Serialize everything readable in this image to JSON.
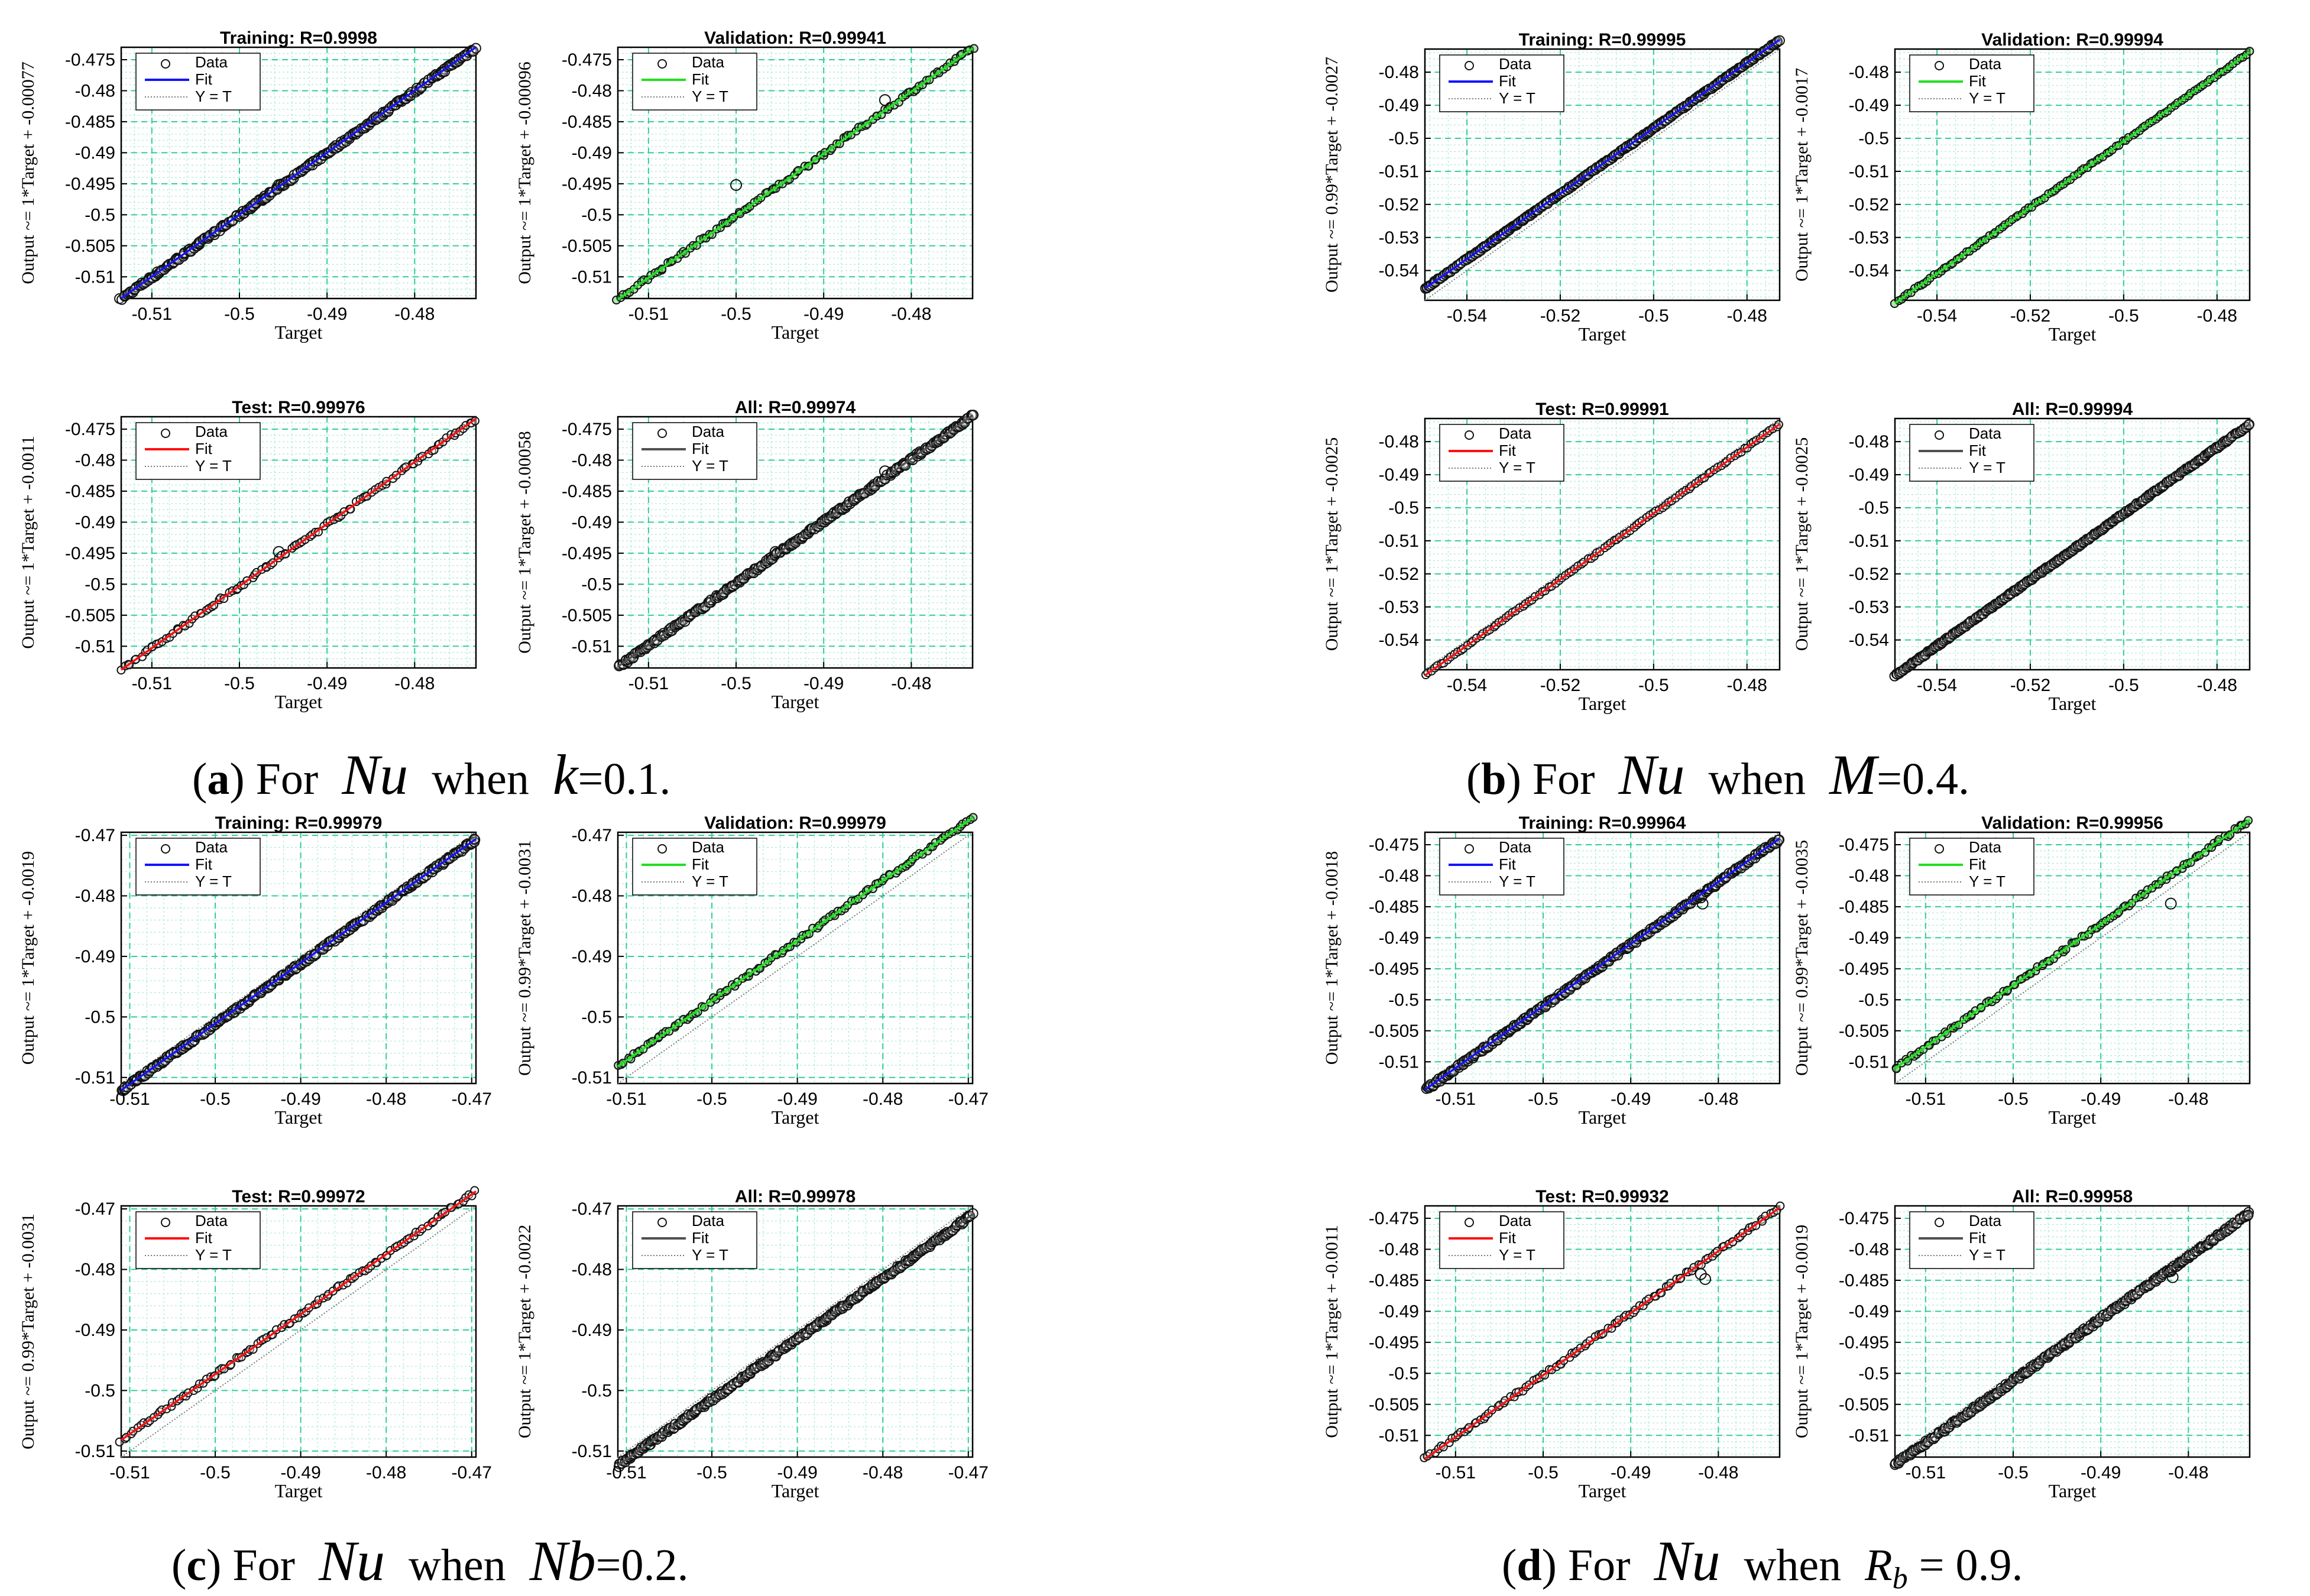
{
  "colors": {
    "fit_training": "#1414ff",
    "fit_validation": "#22e022",
    "fit_test": "#ff1010",
    "fit_all": "#505050",
    "grid": "#33cc99",
    "minor_grid": "#a8ecd4"
  },
  "common": {
    "xlabel": "Target",
    "legend": [
      "Data",
      "Fit",
      "Y = T"
    ]
  },
  "captions": [
    {
      "letter": "a",
      "open": "(",
      "close": ")",
      "for": "For",
      "var": "Nu",
      "when": "when",
      "param": "k",
      "eq": "=",
      "value": "0.1",
      "end": "."
    },
    {
      "letter": "b",
      "open": "(",
      "close": ")",
      "for": "For",
      "var": "Nu",
      "when": "when",
      "param": "M",
      "eq": "=",
      "value": "0.4",
      "end": "."
    },
    {
      "letter": "c",
      "open": "(",
      "close": ")",
      "for": "For",
      "var": "Nu",
      "when": "when",
      "param": "Nb",
      "eq": "=",
      "value": "0.2",
      "end": "."
    },
    {
      "letter": "d",
      "open": "(",
      "close": ")",
      "for": "For",
      "var": "Nu",
      "when": "when",
      "param": "R",
      "param_sub": "b",
      "eq": "=",
      "value": "0.9",
      "end": "."
    }
  ],
  "chart_data": [
    {
      "type": "scatter",
      "group": "a",
      "kind": "training",
      "title": "Training: R=0.9998",
      "ylabel": "Output ~= 1*Target + -0.00077",
      "xlim": [
        -0.5135,
        -0.473
      ],
      "ylim": [
        -0.5135,
        -0.473
      ],
      "xticks": [
        -0.51,
        -0.5,
        -0.49,
        -0.48
      ],
      "xtick_labels": [
        "-0.51",
        "-0.5",
        "-0.49",
        "-0.48"
      ],
      "yticks": [
        -0.51,
        -0.505,
        -0.5,
        -0.495,
        -0.49,
        -0.485,
        -0.48,
        -0.475
      ],
      "ytick_labels": [
        "-0.51",
        "-0.505",
        "-0.5",
        "-0.495",
        "-0.49",
        "-0.485",
        "-0.48",
        "-0.475"
      ],
      "fit": {
        "slope": 1,
        "intercept": -0.00077
      },
      "density": "dense",
      "outliers": [
        [
          -0.4955,
          -0.4952
        ]
      ]
    },
    {
      "type": "scatter",
      "group": "a",
      "kind": "validation",
      "title": "Validation: R=0.99941",
      "ylabel": "Output ~= 1*Target + -0.00096",
      "xlim": [
        -0.5135,
        -0.473
      ],
      "ylim": [
        -0.5135,
        -0.473
      ],
      "xticks": [
        -0.51,
        -0.5,
        -0.49,
        -0.48
      ],
      "xtick_labels": [
        "-0.51",
        "-0.5",
        "-0.49",
        "-0.48"
      ],
      "yticks": [
        -0.51,
        -0.505,
        -0.5,
        -0.495,
        -0.49,
        -0.485,
        -0.48,
        -0.475
      ],
      "ytick_labels": [
        "-0.51",
        "-0.505",
        "-0.5",
        "-0.495",
        "-0.49",
        "-0.485",
        "-0.48",
        "-0.475"
      ],
      "fit": {
        "slope": 1,
        "intercept": -0.00096
      },
      "density": "medium",
      "outliers": [
        [
          -0.5,
          -0.4952
        ],
        [
          -0.483,
          -0.4815
        ]
      ]
    },
    {
      "type": "scatter",
      "group": "a",
      "kind": "test",
      "title": "Test: R=0.99976",
      "ylabel": "Output ~= 1*Target + -0.0011",
      "xlim": [
        -0.5135,
        -0.473
      ],
      "ylim": [
        -0.5135,
        -0.473
      ],
      "xticks": [
        -0.51,
        -0.5,
        -0.49,
        -0.48
      ],
      "xtick_labels": [
        "-0.51",
        "-0.5",
        "-0.49",
        "-0.48"
      ],
      "yticks": [
        -0.51,
        -0.505,
        -0.5,
        -0.495,
        -0.49,
        -0.485,
        -0.48,
        -0.475
      ],
      "ytick_labels": [
        "-0.51",
        "-0.505",
        "-0.5",
        "-0.495",
        "-0.49",
        "-0.485",
        "-0.48",
        "-0.475"
      ],
      "fit": {
        "slope": 1,
        "intercept": -0.0011
      },
      "density": "medium",
      "outliers": [
        [
          -0.4955,
          -0.4948
        ]
      ]
    },
    {
      "type": "scatter",
      "group": "a",
      "kind": "all",
      "title": "All: R=0.99974",
      "ylabel": "Output ~= 1*Target + -0.00058",
      "xlim": [
        -0.5135,
        -0.473
      ],
      "ylim": [
        -0.5135,
        -0.473
      ],
      "xticks": [
        -0.51,
        -0.5,
        -0.49,
        -0.48
      ],
      "xtick_labels": [
        "-0.51",
        "-0.5",
        "-0.49",
        "-0.48"
      ],
      "yticks": [
        -0.51,
        -0.505,
        -0.5,
        -0.495,
        -0.49,
        -0.485,
        -0.48,
        -0.475
      ],
      "ytick_labels": [
        "-0.51",
        "-0.505",
        "-0.5",
        "-0.495",
        "-0.49",
        "-0.485",
        "-0.48",
        "-0.475"
      ],
      "fit": {
        "slope": 1,
        "intercept": -0.00058
      },
      "density": "dense",
      "outliers": [
        [
          -0.4955,
          -0.4948
        ],
        [
          -0.483,
          -0.4818
        ]
      ]
    },
    {
      "type": "scatter",
      "group": "b",
      "kind": "training",
      "title": "Training: R=0.99995",
      "ylabel": "Output ~= 0.99*Target + -0.0027",
      "xlim": [
        -0.549,
        -0.473
      ],
      "ylim": [
        -0.549,
        -0.473
      ],
      "xticks": [
        -0.54,
        -0.52,
        -0.5,
        -0.48
      ],
      "xtick_labels": [
        "-0.54",
        "-0.52",
        "-0.5",
        "-0.48"
      ],
      "yticks": [
        -0.54,
        -0.53,
        -0.52,
        -0.51,
        -0.5,
        -0.49,
        -0.48
      ],
      "ytick_labels": [
        "-0.54",
        "-0.53",
        "-0.52",
        "-0.51",
        "-0.5",
        "-0.49",
        "-0.48"
      ],
      "fit": {
        "slope": 0.99,
        "intercept": -0.0027
      },
      "density": "dense",
      "outliers": []
    },
    {
      "type": "scatter",
      "group": "b",
      "kind": "validation",
      "title": "Validation: R=0.99994",
      "ylabel": "Output ~= 1*Target + -0.0017",
      "xlim": [
        -0.549,
        -0.473
      ],
      "ylim": [
        -0.549,
        -0.473
      ],
      "xticks": [
        -0.54,
        -0.52,
        -0.5,
        -0.48
      ],
      "xtick_labels": [
        "-0.54",
        "-0.52",
        "-0.5",
        "-0.48"
      ],
      "yticks": [
        -0.54,
        -0.53,
        -0.52,
        -0.51,
        -0.5,
        -0.49,
        -0.48
      ],
      "ytick_labels": [
        "-0.54",
        "-0.53",
        "-0.52",
        "-0.51",
        "-0.5",
        "-0.49",
        "-0.48"
      ],
      "fit": {
        "slope": 1,
        "intercept": -0.0017
      },
      "density": "medium",
      "outliers": []
    },
    {
      "type": "scatter",
      "group": "b",
      "kind": "test",
      "title": "Test: R=0.99991",
      "ylabel": "Output ~= 1*Target + -0.0025",
      "xlim": [
        -0.549,
        -0.473
      ],
      "ylim": [
        -0.549,
        -0.473
      ],
      "xticks": [
        -0.54,
        -0.52,
        -0.5,
        -0.48
      ],
      "xtick_labels": [
        "-0.54",
        "-0.52",
        "-0.5",
        "-0.48"
      ],
      "yticks": [
        -0.54,
        -0.53,
        -0.52,
        -0.51,
        -0.5,
        -0.49,
        -0.48
      ],
      "ytick_labels": [
        "-0.54",
        "-0.53",
        "-0.52",
        "-0.51",
        "-0.5",
        "-0.49",
        "-0.48"
      ],
      "fit": {
        "slope": 1,
        "intercept": -0.0025
      },
      "density": "medium",
      "outliers": []
    },
    {
      "type": "scatter",
      "group": "b",
      "kind": "all",
      "title": "All: R=0.99994",
      "ylabel": "Output ~= 1*Target + -0.0025",
      "xlim": [
        -0.549,
        -0.473
      ],
      "ylim": [
        -0.549,
        -0.473
      ],
      "xticks": [
        -0.54,
        -0.52,
        -0.5,
        -0.48
      ],
      "xtick_labels": [
        "-0.54",
        "-0.52",
        "-0.5",
        "-0.48"
      ],
      "yticks": [
        -0.54,
        -0.53,
        -0.52,
        -0.51,
        -0.5,
        -0.49,
        -0.48
      ],
      "ytick_labels": [
        "-0.54",
        "-0.53",
        "-0.52",
        "-0.51",
        "-0.5",
        "-0.49",
        "-0.48"
      ],
      "fit": {
        "slope": 1,
        "intercept": -0.0025
      },
      "density": "dense",
      "outliers": []
    },
    {
      "type": "scatter",
      "group": "c",
      "kind": "training",
      "title": "Training: R=0.99979",
      "ylabel": "Output ~= 1*Target + -0.0019",
      "xlim": [
        -0.511,
        -0.4695
      ],
      "ylim": [
        -0.511,
        -0.4695
      ],
      "xticks": [
        -0.51,
        -0.5,
        -0.49,
        -0.48,
        -0.47
      ],
      "xtick_labels": [
        "-0.51",
        "-0.5",
        "-0.49",
        "-0.48",
        "-0.47"
      ],
      "yticks": [
        -0.51,
        -0.5,
        -0.49,
        -0.48,
        -0.47
      ],
      "ytick_labels": [
        "-0.51",
        "-0.5",
        "-0.49",
        "-0.48",
        "-0.47"
      ],
      "fit": {
        "slope": 1,
        "intercept": -0.0019
      },
      "density": "dense",
      "outliers": []
    },
    {
      "type": "scatter",
      "group": "c",
      "kind": "validation",
      "title": "Validation: R=0.99979",
      "ylabel": "Output ~= 0.99*Target + -0.0031",
      "xlim": [
        -0.511,
        -0.4695
      ],
      "ylim": [
        -0.511,
        -0.4695
      ],
      "xticks": [
        -0.51,
        -0.5,
        -0.49,
        -0.48,
        -0.47
      ],
      "xtick_labels": [
        "-0.51",
        "-0.5",
        "-0.49",
        "-0.48",
        "-0.47"
      ],
      "yticks": [
        -0.51,
        -0.5,
        -0.49,
        -0.48,
        -0.47
      ],
      "ytick_labels": [
        "-0.51",
        "-0.5",
        "-0.49",
        "-0.48",
        "-0.47"
      ],
      "fit": {
        "slope": 0.99,
        "intercept": -0.0031
      },
      "density": "medium",
      "outliers": []
    },
    {
      "type": "scatter",
      "group": "c",
      "kind": "test",
      "title": "Test: R=0.99972",
      "ylabel": "Output ~= 0.99*Target + -0.0031",
      "xlim": [
        -0.511,
        -0.4695
      ],
      "ylim": [
        -0.511,
        -0.4695
      ],
      "xticks": [
        -0.51,
        -0.5,
        -0.49,
        -0.48,
        -0.47
      ],
      "xtick_labels": [
        "-0.51",
        "-0.5",
        "-0.49",
        "-0.48",
        "-0.47"
      ],
      "yticks": [
        -0.51,
        -0.5,
        -0.49,
        -0.48,
        -0.47
      ],
      "ytick_labels": [
        "-0.51",
        "-0.5",
        "-0.49",
        "-0.48",
        "-0.47"
      ],
      "fit": {
        "slope": 0.99,
        "intercept": -0.0031
      },
      "density": "medium",
      "outliers": []
    },
    {
      "type": "scatter",
      "group": "c",
      "kind": "all",
      "title": "All: R=0.99978",
      "ylabel": "Output ~= 1*Target + -0.0022",
      "xlim": [
        -0.511,
        -0.4695
      ],
      "ylim": [
        -0.511,
        -0.4695
      ],
      "xticks": [
        -0.51,
        -0.5,
        -0.49,
        -0.48,
        -0.47
      ],
      "xtick_labels": [
        "-0.51",
        "-0.5",
        "-0.49",
        "-0.48",
        "-0.47"
      ],
      "yticks": [
        -0.51,
        -0.5,
        -0.49,
        -0.48,
        -0.47
      ],
      "ytick_labels": [
        "-0.51",
        "-0.5",
        "-0.49",
        "-0.48",
        "-0.47"
      ],
      "fit": {
        "slope": 1,
        "intercept": -0.0022
      },
      "density": "dense",
      "outliers": []
    },
    {
      "type": "scatter",
      "group": "d",
      "kind": "training",
      "title": "Training: R=0.99964",
      "ylabel": "Output ~= 1*Target + -0.0018",
      "xlim": [
        -0.5135,
        -0.473
      ],
      "ylim": [
        -0.5135,
        -0.473
      ],
      "xticks": [
        -0.51,
        -0.5,
        -0.49,
        -0.48
      ],
      "xtick_labels": [
        "-0.51",
        "-0.5",
        "-0.49",
        "-0.48"
      ],
      "yticks": [
        -0.51,
        -0.505,
        -0.5,
        -0.495,
        -0.49,
        -0.485,
        -0.48,
        -0.475
      ],
      "ytick_labels": [
        "-0.51",
        "-0.505",
        "-0.5",
        "-0.495",
        "-0.49",
        "-0.485",
        "-0.48",
        "-0.475"
      ],
      "fit": {
        "slope": 1,
        "intercept": -0.0018
      },
      "density": "dense",
      "outliers": [
        [
          -0.482,
          -0.4835
        ],
        [
          -0.4818,
          -0.4845
        ]
      ]
    },
    {
      "type": "scatter",
      "group": "d",
      "kind": "validation",
      "title": "Validation: R=0.99956",
      "ylabel": "Output ~= 0.99*Target + -0.0035",
      "xlim": [
        -0.5135,
        -0.473
      ],
      "ylim": [
        -0.5135,
        -0.473
      ],
      "xticks": [
        -0.51,
        -0.5,
        -0.49,
        -0.48
      ],
      "xtick_labels": [
        "-0.51",
        "-0.5",
        "-0.49",
        "-0.48"
      ],
      "yticks": [
        -0.51,
        -0.505,
        -0.5,
        -0.495,
        -0.49,
        -0.485,
        -0.48,
        -0.475
      ],
      "ytick_labels": [
        "-0.51",
        "-0.505",
        "-0.5",
        "-0.495",
        "-0.49",
        "-0.485",
        "-0.48",
        "-0.475"
      ],
      "fit": {
        "slope": 0.99,
        "intercept": -0.0035
      },
      "density": "medium",
      "outliers": [
        [
          -0.482,
          -0.4845
        ]
      ]
    },
    {
      "type": "scatter",
      "group": "d",
      "kind": "test",
      "title": "Test: R=0.99932",
      "ylabel": "Output ~= 1*Target + -0.0011",
      "xlim": [
        -0.5135,
        -0.473
      ],
      "ylim": [
        -0.5135,
        -0.473
      ],
      "xticks": [
        -0.51,
        -0.5,
        -0.49,
        -0.48
      ],
      "xtick_labels": [
        "-0.51",
        "-0.5",
        "-0.49",
        "-0.48"
      ],
      "yticks": [
        -0.51,
        -0.505,
        -0.5,
        -0.495,
        -0.49,
        -0.485,
        -0.48,
        -0.475
      ],
      "ytick_labels": [
        "-0.51",
        "-0.505",
        "-0.5",
        "-0.495",
        "-0.49",
        "-0.485",
        "-0.48",
        "-0.475"
      ],
      "fit": {
        "slope": 1,
        "intercept": -0.0011
      },
      "density": "medium",
      "outliers": [
        [
          -0.482,
          -0.484
        ],
        [
          -0.4815,
          -0.4848
        ]
      ]
    },
    {
      "type": "scatter",
      "group": "d",
      "kind": "all",
      "title": "All: R=0.99958",
      "ylabel": "Output ~= 1*Target + -0.0019",
      "xlim": [
        -0.5135,
        -0.473
      ],
      "ylim": [
        -0.5135,
        -0.473
      ],
      "xticks": [
        -0.51,
        -0.5,
        -0.49,
        -0.48
      ],
      "xtick_labels": [
        "-0.51",
        "-0.5",
        "-0.49",
        "-0.48"
      ],
      "yticks": [
        -0.51,
        -0.505,
        -0.5,
        -0.495,
        -0.49,
        -0.485,
        -0.48,
        -0.475
      ],
      "ytick_labels": [
        "-0.51",
        "-0.505",
        "-0.5",
        "-0.495",
        "-0.49",
        "-0.485",
        "-0.48",
        "-0.475"
      ],
      "fit": {
        "slope": 1,
        "intercept": -0.0019
      },
      "density": "dense",
      "outliers": [
        [
          -0.482,
          -0.4835
        ],
        [
          -0.4818,
          -0.4845
        ]
      ]
    }
  ]
}
